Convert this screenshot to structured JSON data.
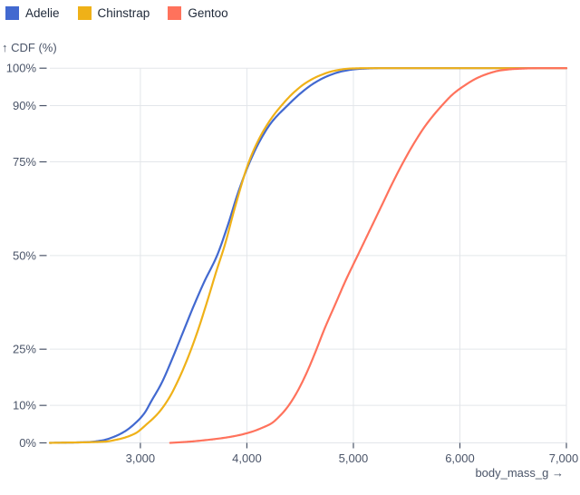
{
  "legend": {
    "items": [
      {
        "label": "Adelie",
        "color": "#4269d0"
      },
      {
        "label": "Chinstrap",
        "color": "#efb118"
      },
      {
        "label": "Gentoo",
        "color": "#ff725c"
      }
    ]
  },
  "chart_data": {
    "type": "line",
    "title": "",
    "ylabel": "↑ CDF (%)",
    "xlabel": "body_mass_g →",
    "x_domain": [
      2150,
      7000
    ],
    "y_domain": [
      0,
      100
    ],
    "grid": true,
    "legend_position": "top-left",
    "background": "#ffffff",
    "grid_color": "#e3e6ea",
    "axis_color": "#4a5468",
    "x_ticks": [
      {
        "value": 3000,
        "label": "3,000"
      },
      {
        "value": 4000,
        "label": "4,000"
      },
      {
        "value": 5000,
        "label": "5,000"
      },
      {
        "value": 6000,
        "label": "6,000"
      },
      {
        "value": 7000,
        "label": "7,000"
      }
    ],
    "y_ticks": [
      {
        "value": 0,
        "label": "0%"
      },
      {
        "value": 10,
        "label": "10%"
      },
      {
        "value": 25,
        "label": "25%"
      },
      {
        "value": 50,
        "label": "50%"
      },
      {
        "value": 75,
        "label": "75%"
      },
      {
        "value": 90,
        "label": "90%"
      },
      {
        "value": 100,
        "label": "100%"
      }
    ],
    "series": [
      {
        "name": "Adelie",
        "color": "#4269d0",
        "points": [
          [
            2150,
            0
          ],
          [
            2500,
            0.2
          ],
          [
            2650,
            0.7
          ],
          [
            2750,
            1.6
          ],
          [
            2850,
            3
          ],
          [
            2950,
            5.2
          ],
          [
            3040,
            8
          ],
          [
            3100,
            11
          ],
          [
            3200,
            16
          ],
          [
            3300,
            22.5
          ],
          [
            3400,
            29.5
          ],
          [
            3500,
            36.5
          ],
          [
            3600,
            43
          ],
          [
            3720,
            50
          ],
          [
            3820,
            58
          ],
          [
            3920,
            67
          ],
          [
            4020,
            74.5
          ],
          [
            4120,
            80.5
          ],
          [
            4230,
            85.5
          ],
          [
            4380,
            90
          ],
          [
            4500,
            93.2
          ],
          [
            4620,
            95.8
          ],
          [
            4750,
            97.8
          ],
          [
            4900,
            99.2
          ],
          [
            5050,
            99.8
          ],
          [
            5250,
            100
          ],
          [
            7000,
            100
          ]
        ]
      },
      {
        "name": "Chinstrap",
        "color": "#efb118",
        "points": [
          [
            2150,
            0
          ],
          [
            2650,
            0.3
          ],
          [
            2800,
            1
          ],
          [
            2950,
            2.5
          ],
          [
            3060,
            5
          ],
          [
            3170,
            8
          ],
          [
            3270,
            12
          ],
          [
            3360,
            17
          ],
          [
            3450,
            23
          ],
          [
            3540,
            30
          ],
          [
            3630,
            38
          ],
          [
            3710,
            45.5
          ],
          [
            3800,
            53.5
          ],
          [
            3870,
            61
          ],
          [
            3940,
            68
          ],
          [
            4000,
            73.5
          ],
          [
            4070,
            78.5
          ],
          [
            4150,
            83
          ],
          [
            4240,
            87
          ],
          [
            4330,
            90.2
          ],
          [
            4440,
            93.5
          ],
          [
            4560,
            96.2
          ],
          [
            4690,
            98.1
          ],
          [
            4820,
            99.3
          ],
          [
            4970,
            99.9
          ],
          [
            5120,
            100
          ],
          [
            7000,
            100
          ]
        ]
      },
      {
        "name": "Gentoo",
        "color": "#ff725c",
        "points": [
          [
            3280,
            0
          ],
          [
            3450,
            0.3
          ],
          [
            3600,
            0.7
          ],
          [
            3750,
            1.2
          ],
          [
            3900,
            1.9
          ],
          [
            4050,
            3
          ],
          [
            4150,
            4.1
          ],
          [
            4230,
            5.2
          ],
          [
            4320,
            7.5
          ],
          [
            4380,
            9.5
          ],
          [
            4460,
            13
          ],
          [
            4550,
            18
          ],
          [
            4640,
            24
          ],
          [
            4730,
            30.5
          ],
          [
            4830,
            37
          ],
          [
            4930,
            43.5
          ],
          [
            5040,
            50
          ],
          [
            5150,
            56.5
          ],
          [
            5260,
            63
          ],
          [
            5370,
            69.5
          ],
          [
            5470,
            75
          ],
          [
            5570,
            80
          ],
          [
            5680,
            84.8
          ],
          [
            5830,
            90
          ],
          [
            5940,
            93.2
          ],
          [
            6040,
            95.3
          ],
          [
            6150,
            97.2
          ],
          [
            6260,
            98.5
          ],
          [
            6380,
            99.4
          ],
          [
            6520,
            99.8
          ],
          [
            6750,
            100
          ],
          [
            7000,
            100
          ]
        ]
      }
    ]
  }
}
